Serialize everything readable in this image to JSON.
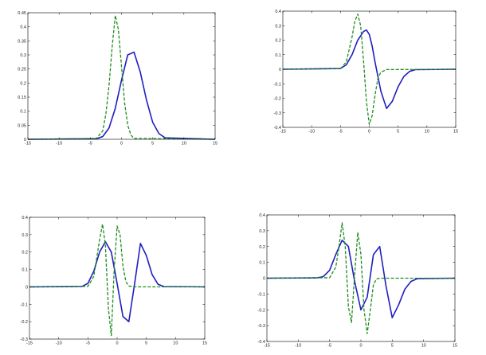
{
  "chart_data": [
    {
      "type": "line",
      "xlim": [
        -15,
        15
      ],
      "ylim": [
        0,
        0.45
      ],
      "xticks": [
        -15,
        -10,
        -5,
        0,
        5,
        10,
        15
      ],
      "yticks": [
        0,
        0.05,
        0.1,
        0.15,
        0.2,
        0.25,
        0.3,
        0.35,
        0.4,
        0.45
      ],
      "ytick_labels": [
        "0",
        "0.05",
        "0.1",
        "0.15",
        "0.2",
        "0.25",
        "0.3",
        "0.35",
        "0.4",
        "0.45"
      ],
      "grid": false,
      "series": [
        {
          "style": "solid",
          "color": "#1f1fbf",
          "x": [
            -15,
            -4,
            -3,
            -2,
            -1,
            0,
            1,
            2,
            3,
            4,
            5,
            6,
            7,
            15
          ],
          "y": [
            0,
            0.002,
            0.01,
            0.04,
            0.11,
            0.21,
            0.3,
            0.31,
            0.24,
            0.14,
            0.06,
            0.02,
            0.005,
            0
          ]
        },
        {
          "style": "dashed",
          "color": "#1e8c1e",
          "x": [
            -15,
            -4,
            -3,
            -2.5,
            -2,
            -1.5,
            -1,
            -0.5,
            0,
            0.5,
            1,
            1.5,
            2,
            15
          ],
          "y": [
            0,
            0.003,
            0.03,
            0.09,
            0.19,
            0.33,
            0.44,
            0.39,
            0.26,
            0.13,
            0.05,
            0.015,
            0.003,
            0
          ]
        }
      ]
    },
    {
      "type": "line",
      "xlim": [
        -15,
        15
      ],
      "ylim": [
        -0.4,
        0.4
      ],
      "xticks": [
        -15,
        -10,
        -5,
        0,
        5,
        10,
        15
      ],
      "yticks": [
        -0.4,
        -0.3,
        -0.2,
        -0.1,
        0,
        0.1,
        0.2,
        0.3,
        0.4
      ],
      "ytick_labels": [
        "-0.4",
        "-0.3",
        "-0.2",
        "-0.1",
        "0",
        "0.1",
        "0.2",
        "0.3",
        "0.4"
      ],
      "grid": false,
      "series": [
        {
          "style": "solid",
          "color": "#1f1fbf",
          "x": [
            -15,
            -5,
            -4,
            -3,
            -2,
            -1,
            -0.5,
            0,
            0.5,
            1,
            2,
            3,
            4,
            5,
            6,
            7,
            8,
            15
          ],
          "y": [
            0,
            0.005,
            0.03,
            0.1,
            0.2,
            0.26,
            0.27,
            0.24,
            0.16,
            0.05,
            -0.15,
            -0.27,
            -0.22,
            -0.12,
            -0.05,
            -0.015,
            -0.003,
            0
          ]
        },
        {
          "style": "dashed",
          "color": "#1e8c1e",
          "x": [
            -15,
            -5,
            -4,
            -3,
            -2.5,
            -2,
            -1.5,
            -1,
            -0.5,
            0,
            0.5,
            1,
            1.5,
            2,
            3,
            15
          ],
          "y": [
            0,
            0.004,
            0.05,
            0.22,
            0.33,
            0.38,
            0.3,
            0.06,
            -0.22,
            -0.38,
            -0.32,
            -0.18,
            -0.06,
            -0.02,
            -0.002,
            0
          ]
        }
      ]
    },
    {
      "type": "line",
      "xlim": [
        -15,
        15
      ],
      "ylim": [
        -0.3,
        0.4
      ],
      "xticks": [
        -15,
        -10,
        -5,
        0,
        5,
        10,
        15
      ],
      "yticks": [
        -0.3,
        -0.2,
        -0.1,
        0,
        0.1,
        0.2,
        0.3,
        0.4
      ],
      "ytick_labels": [
        "-0.3",
        "-0.2",
        "-0.1",
        "0",
        "0.1",
        "0.2",
        "0.3",
        "0.4"
      ],
      "grid": false,
      "series": [
        {
          "style": "solid",
          "color": "#1f1fbf",
          "x": [
            -15,
            -6,
            -5,
            -4,
            -3,
            -2,
            -1,
            0,
            1,
            2,
            3,
            4,
            5,
            6,
            7,
            8,
            15
          ],
          "y": [
            0,
            0.003,
            0.02,
            0.09,
            0.2,
            0.26,
            0.2,
            0.02,
            -0.17,
            -0.2,
            0.02,
            0.25,
            0.18,
            0.07,
            0.015,
            0.002,
            0
          ]
        },
        {
          "style": "dashed",
          "color": "#1e8c1e",
          "x": [
            -15,
            -5,
            -4,
            -3,
            -2.5,
            -2,
            -1.5,
            -1,
            -0.5,
            0,
            0.5,
            1,
            1.5,
            2,
            3,
            15
          ],
          "y": [
            0,
            0.003,
            0.06,
            0.27,
            0.36,
            0.24,
            -0.12,
            -0.28,
            0.1,
            0.35,
            0.3,
            0.12,
            0.03,
            0.005,
            0,
            0
          ]
        }
      ]
    },
    {
      "type": "line",
      "xlim": [
        -15,
        15
      ],
      "ylim": [
        -0.4,
        0.4
      ],
      "xticks": [
        -15,
        -10,
        -5,
        0,
        5,
        10,
        15
      ],
      "yticks": [
        -0.4,
        -0.3,
        -0.2,
        -0.1,
        0,
        0.1,
        0.2,
        0.3,
        0.4
      ],
      "ytick_labels": [
        "-0.4",
        "-0.3",
        "-0.2",
        "-0.1",
        "0",
        "0.1",
        "0.2",
        "0.3",
        "0.4"
      ],
      "grid": false,
      "series": [
        {
          "style": "solid",
          "color": "#1f1fbf",
          "x": [
            -15,
            -7,
            -6,
            -5,
            -4,
            -3,
            -2,
            -1,
            0,
            1,
            2,
            3,
            4,
            5,
            6,
            7,
            8,
            9,
            15
          ],
          "y": [
            0,
            0.002,
            0.01,
            0.05,
            0.15,
            0.24,
            0.2,
            -0.02,
            -0.2,
            -0.12,
            0.15,
            0.2,
            -0.05,
            -0.25,
            -0.17,
            -0.07,
            -0.02,
            -0.003,
            0
          ]
        },
        {
          "style": "dashed",
          "color": "#1e8c1e",
          "x": [
            -15,
            -5,
            -4,
            -3.5,
            -3,
            -2.5,
            -2,
            -1.5,
            -1,
            -0.5,
            0,
            0.5,
            1,
            1.5,
            2,
            2.5,
            3,
            15
          ],
          "y": [
            0,
            0.003,
            0.07,
            0.2,
            0.35,
            0.2,
            -0.18,
            -0.28,
            0.02,
            0.29,
            0.15,
            -0.2,
            -0.35,
            -0.2,
            -0.04,
            -0.005,
            0,
            0
          ]
        }
      ]
    }
  ]
}
